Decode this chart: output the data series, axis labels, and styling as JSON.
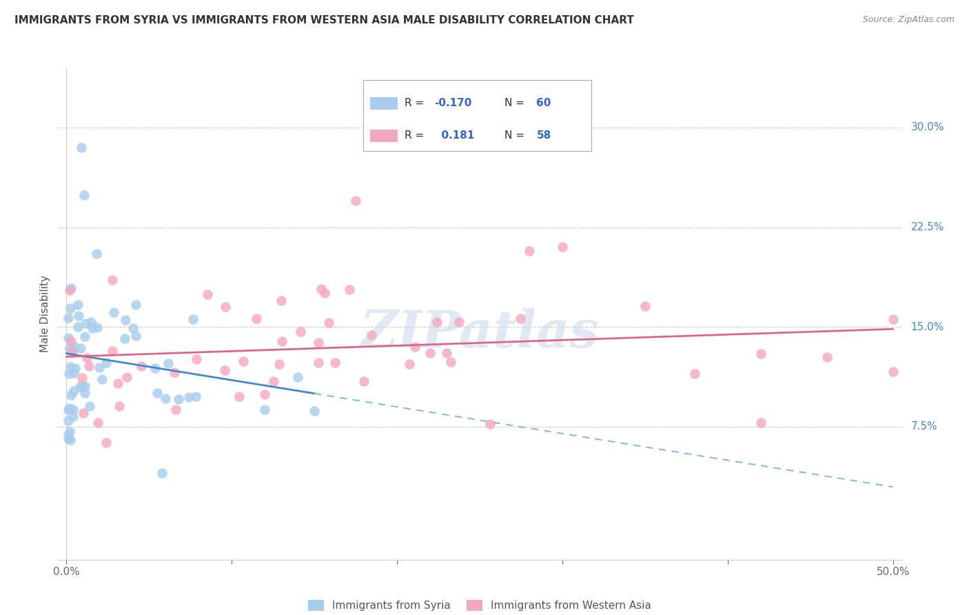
{
  "title": "IMMIGRANTS FROM SYRIA VS IMMIGRANTS FROM WESTERN ASIA MALE DISABILITY CORRELATION CHART",
  "source": "Source: ZipAtlas.com",
  "ylabel": "Male Disability",
  "ytick_labels": [
    "7.5%",
    "15.0%",
    "22.5%",
    "30.0%"
  ],
  "ytick_values": [
    0.075,
    0.15,
    0.225,
    0.3
  ],
  "xlim": [
    0.0,
    0.5
  ],
  "ylim": [
    -0.02,
    0.34
  ],
  "legend_r1_label": "R = -0.170",
  "legend_n1_label": "N = 60",
  "legend_r2_label": "R =   0.181",
  "legend_n2_label": "N = 58",
  "color_syria": "#a8ccee",
  "color_western_asia": "#f4a8be",
  "color_syria_line": "#4488cc",
  "color_western_asia_line": "#dd6688",
  "color_dashed": "#88bbdd",
  "watermark": "ZIPatlas",
  "legend_r1_color": "#3366cc",
  "legend_n1_color": "#3366cc",
  "legend_r2_color": "#3366cc",
  "legend_n2_color": "#3366cc",
  "title_color": "#333333",
  "source_color": "#888888",
  "ylabel_color": "#555555",
  "grid_color": "#cccccc",
  "ytick_color": "#4488cc",
  "xtick_color": "#666666"
}
